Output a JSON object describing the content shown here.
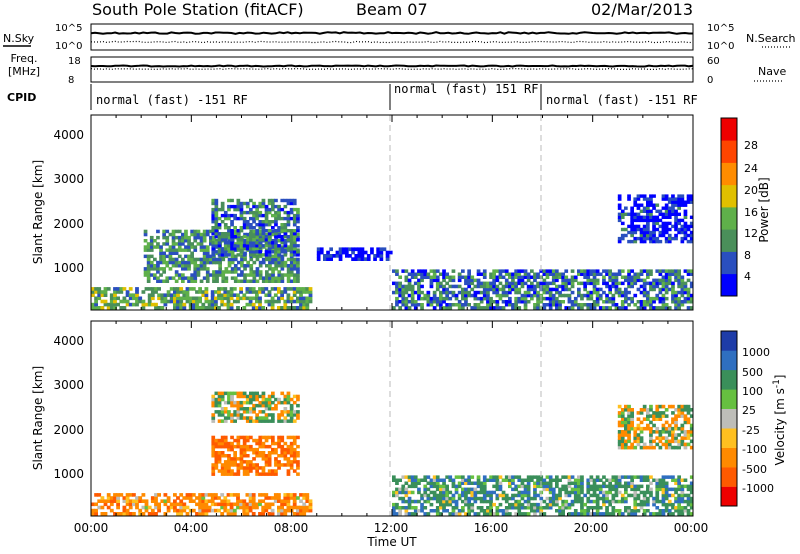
{
  "header": {
    "station": "South Pole Station (fitACF)",
    "beam": "Beam 07",
    "date": "02/Mar/2013"
  },
  "top_panels": {
    "nsky_label": "N.Sky",
    "nsky_ticks": [
      "10^5",
      "10^0"
    ],
    "nsearch_label": "N.Search",
    "nsearch_ticks": [
      "10^5",
      "10^0"
    ],
    "freq_label_1": "Freq.",
    "freq_label_2": "[MHz]",
    "freq_ticks": [
      "18",
      "8"
    ],
    "nave_label": "Nave",
    "nave_ticks": [
      "60",
      "0"
    ],
    "cpid_label": "CPID",
    "cpid_segments": [
      {
        "label": "normal (fast) -151 RF",
        "start_hour": 0
      },
      {
        "label": "normal (fast) 151 RF",
        "start_hour": 12
      },
      {
        "label": "normal (fast) -151 RF",
        "start_hour": 18
      }
    ]
  },
  "chart_data": [
    {
      "type": "heatmap",
      "name": "power",
      "ylabel": "Slant Range [km]",
      "ylim": [
        180,
        4600
      ],
      "yticks": [
        "4000",
        "3000",
        "2000",
        "1000"
      ],
      "xlim": [
        0,
        24
      ],
      "colorbar": {
        "label": "Power [dB]",
        "ticks": [
          "28",
          "24",
          "20",
          "16",
          "12",
          "8",
          "4"
        ],
        "colors": [
          "#0000ff",
          "#2a4fbf",
          "#4a8f5a",
          "#5fb04a",
          "#e0c000",
          "#ff8c00",
          "#ff4500",
          "#ee0000"
        ]
      },
      "echo_regions": [
        {
          "t0": 0.0,
          "t1": 8.8,
          "r0": 200,
          "r1": 700,
          "value": 14
        },
        {
          "t0": 2.1,
          "t1": 8.3,
          "r0": 800,
          "r1": 2000,
          "value": 12
        },
        {
          "t0": 4.8,
          "t1": 8.3,
          "r0": 1400,
          "r1": 2700,
          "value": 10
        },
        {
          "t0": 9.0,
          "t1": 12.0,
          "r0": 1300,
          "r1": 1600,
          "value": 4
        },
        {
          "t0": 12.0,
          "t1": 24.0,
          "r0": 200,
          "r1": 1100,
          "value": 10
        },
        {
          "t0": 21.0,
          "t1": 24.0,
          "r0": 1700,
          "r1": 2800,
          "value": 5
        }
      ]
    },
    {
      "type": "heatmap",
      "name": "velocity",
      "ylabel": "Slant Range [km]",
      "ylim": [
        180,
        4600
      ],
      "yticks": [
        "4000",
        "3000",
        "2000",
        "1000"
      ],
      "xlim": [
        0,
        24
      ],
      "xlabel": "Time UT",
      "xticks": [
        "00:00",
        "04:00",
        "08:00",
        "12:00",
        "16:00",
        "20:00",
        "00:00"
      ],
      "colorbar": {
        "label": "Velocity [m s",
        "label_sup": "-1",
        "label_end": "]",
        "ticks": [
          "1000",
          "500",
          "100",
          "25",
          "-25",
          "-100",
          "-500",
          "-1000"
        ],
        "colors": [
          "#1e3ca8",
          "#2f6fc0",
          "#3a8f5a",
          "#66c040",
          "#bdbdb8",
          "#ffc020",
          "#ff8a00",
          "#ff5a00",
          "#ee0000"
        ]
      },
      "echo_regions": [
        {
          "t0": 0.0,
          "t1": 8.8,
          "r0": 200,
          "r1": 700,
          "value": -300
        },
        {
          "t0": 4.8,
          "t1": 8.3,
          "r0": 1100,
          "r1": 2000,
          "value": -500
        },
        {
          "t0": 4.8,
          "t1": 8.3,
          "r0": 2300,
          "r1": 3000,
          "value": 20
        },
        {
          "t0": 12.0,
          "t1": 24.0,
          "r0": 200,
          "r1": 1100,
          "value": 300
        },
        {
          "t0": 21.0,
          "t1": 24.0,
          "r0": 1700,
          "r1": 2700,
          "value": 0
        }
      ]
    }
  ]
}
